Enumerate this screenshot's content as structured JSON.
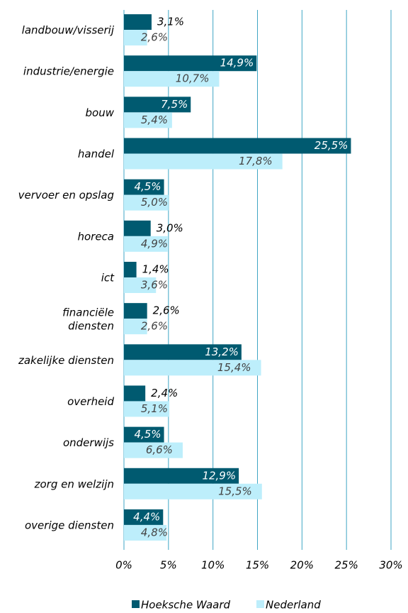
{
  "chart_data": {
    "type": "bar",
    "orientation": "horizontal",
    "categories": [
      "landbouw/visserij",
      "industrie/energie",
      "bouw",
      "handel",
      "vervoer en opslag",
      "horeca",
      "ict",
      "financiële\ndiensten",
      "zakelijke diensten",
      "overheid",
      "onderwijs",
      "zorg en welzijn",
      "overige diensten"
    ],
    "series": [
      {
        "name": "Hoeksche Waard",
        "color": "#005a70",
        "values": [
          3.1,
          14.9,
          7.5,
          25.5,
          4.5,
          3.0,
          1.4,
          2.6,
          13.2,
          2.4,
          4.5,
          12.9,
          4.4
        ],
        "value_labels": [
          "3,1%",
          "14,9%",
          "7,5%",
          "25,5%",
          "4,5%",
          "3,0%",
          "1,4%",
          "2,6%",
          "13,2%",
          "2,4%",
          "4,5%",
          "12,9%",
          "4,4%"
        ]
      },
      {
        "name": "Nederland",
        "color": "#bdeefb",
        "values": [
          2.6,
          10.7,
          5.4,
          17.8,
          5.0,
          4.9,
          3.6,
          2.6,
          15.4,
          5.1,
          6.6,
          15.5,
          4.8
        ],
        "value_labels": [
          "2,6%",
          "10,7%",
          "5,4%",
          "17,8%",
          "5,0%",
          "4,9%",
          "3,6%",
          "2,6%",
          "15,4%",
          "5,1%",
          "6,6%",
          "15,5%",
          "4,8%"
        ]
      }
    ],
    "xlim": [
      0,
      30
    ],
    "xticks": [
      {
        "value": 0,
        "label": "0%"
      },
      {
        "value": 5,
        "label": "5%"
      },
      {
        "value": 10,
        "label": "10%"
      },
      {
        "value": 15,
        "label": "15%"
      },
      {
        "value": 20,
        "label": "20%"
      },
      {
        "value": 25,
        "label": "25%"
      },
      {
        "value": 30,
        "label": "30%"
      }
    ],
    "grid": true,
    "legend": "bottom"
  }
}
